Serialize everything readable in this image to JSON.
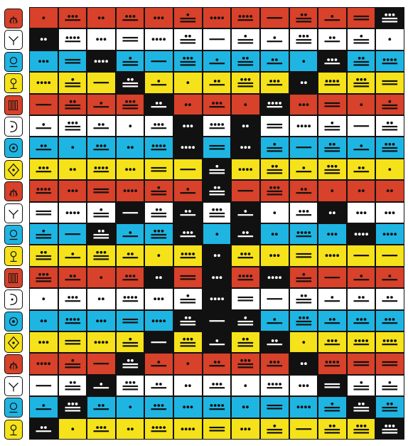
{
  "palette": {
    "red": "#d8412a",
    "white": "#ffffff",
    "blue": "#1fb5e2",
    "yellow": "#f5e21a",
    "black": "#111111"
  },
  "day_signs": [
    {
      "name": "imix-glyph-icon",
      "color": "red"
    },
    {
      "name": "ik-glyph-icon",
      "color": "white"
    },
    {
      "name": "akbal-glyph-icon",
      "color": "blue"
    },
    {
      "name": "kan-glyph-icon",
      "color": "yellow"
    },
    {
      "name": "chikchan-glyph-icon",
      "color": "red"
    },
    {
      "name": "kimi-glyph-icon",
      "color": "white"
    },
    {
      "name": "manik-glyph-icon",
      "color": "blue"
    },
    {
      "name": "lamat-glyph-icon",
      "color": "yellow"
    },
    {
      "name": "muluk-glyph-icon",
      "color": "red"
    },
    {
      "name": "ok-glyph-icon",
      "color": "white"
    },
    {
      "name": "chuwen-glyph-icon",
      "color": "blue"
    },
    {
      "name": "eb-glyph-icon",
      "color": "yellow"
    },
    {
      "name": "ben-glyph-icon",
      "color": "red"
    },
    {
      "name": "ix-glyph-icon",
      "color": "white"
    },
    {
      "name": "men-glyph-icon",
      "color": "blue"
    },
    {
      "name": "kib-glyph-icon",
      "color": "yellow"
    },
    {
      "name": "kaban-glyph-icon",
      "color": "red"
    },
    {
      "name": "etznab-glyph-icon",
      "color": "white"
    },
    {
      "name": "kawak-glyph-icon",
      "color": "blue"
    },
    {
      "name": "ajaw-glyph-icon",
      "color": "yellow"
    }
  ],
  "row_colors": [
    "red",
    "white",
    "blue",
    "yellow",
    "red",
    "white",
    "blue",
    "yellow",
    "red",
    "white",
    "blue",
    "yellow",
    "red",
    "white",
    "blue",
    "yellow",
    "red",
    "white",
    "blue",
    "yellow"
  ],
  "black_cells": [
    [
      0,
      12
    ],
    [
      1,
      0
    ],
    [
      2,
      2
    ],
    [
      2,
      10
    ],
    [
      3,
      3
    ],
    [
      3,
      9
    ],
    [
      4,
      4
    ],
    [
      4,
      8
    ],
    [
      5,
      5
    ],
    [
      5,
      7
    ],
    [
      6,
      5
    ],
    [
      6,
      7
    ],
    [
      7,
      6
    ],
    [
      8,
      6
    ],
    [
      9,
      3
    ],
    [
      9,
      5
    ],
    [
      9,
      7
    ],
    [
      9,
      10
    ],
    [
      10,
      2
    ],
    [
      10,
      5
    ],
    [
      10,
      7
    ],
    [
      10,
      11
    ],
    [
      11,
      6
    ],
    [
      12,
      4
    ],
    [
      12,
      6
    ],
    [
      12,
      8
    ],
    [
      13,
      6
    ],
    [
      14,
      5
    ],
    [
      14,
      6
    ],
    [
      14,
      7
    ],
    [
      15,
      4
    ],
    [
      15,
      6
    ],
    [
      15,
      8
    ],
    [
      16,
      3
    ],
    [
      16,
      9
    ],
    [
      17,
      2
    ],
    [
      17,
      10
    ],
    [
      18,
      1
    ],
    [
      18,
      11
    ],
    [
      19,
      0
    ],
    [
      19,
      12
    ]
  ],
  "numbers": [
    [
      1,
      8,
      2,
      8,
      3,
      11,
      4,
      9,
      5,
      12,
      6,
      10,
      13
    ],
    [
      2,
      9,
      3,
      10,
      4,
      12,
      5,
      11,
      6,
      13,
      7,
      11,
      1
    ],
    [
      3,
      10,
      4,
      11,
      5,
      13,
      6,
      12,
      7,
      1,
      8,
      12,
      9
    ],
    [
      4,
      11,
      5,
      12,
      6,
      1,
      7,
      13,
      8,
      2,
      9,
      13,
      10
    ],
    [
      5,
      12,
      6,
      13,
      7,
      2,
      8,
      1,
      9,
      3,
      10,
      1,
      11
    ],
    [
      6,
      13,
      7,
      1,
      8,
      3,
      9,
      2,
      10,
      4,
      11,
      5,
      12
    ],
    [
      7,
      1,
      8,
      2,
      9,
      4,
      10,
      3,
      11,
      5,
      12,
      6,
      13
    ],
    [
      8,
      2,
      9,
      3,
      10,
      5,
      11,
      4,
      12,
      6,
      13,
      7,
      1
    ],
    [
      9,
      3,
      10,
      4,
      11,
      6,
      12,
      5,
      13,
      7,
      1,
      2,
      2
    ],
    [
      10,
      4,
      11,
      5,
      12,
      7,
      13,
      6,
      1,
      8,
      2,
      3,
      3
    ],
    [
      11,
      5,
      12,
      6,
      13,
      8,
      1,
      7,
      2,
      9,
      3,
      4,
      4
    ],
    [
      12,
      6,
      13,
      7,
      1,
      9,
      2,
      8,
      3,
      10,
      4,
      5,
      5
    ],
    [
      13,
      7,
      1,
      8,
      2,
      10,
      3,
      9,
      4,
      11,
      5,
      6,
      6
    ],
    [
      1,
      8,
      2,
      9,
      3,
      11,
      4,
      10,
      5,
      12,
      6,
      7,
      7
    ],
    [
      2,
      9,
      3,
      10,
      4,
      12,
      5,
      11,
      6,
      13,
      7,
      8,
      8
    ],
    [
      3,
      10,
      4,
      11,
      5,
      13,
      6,
      12,
      7,
      1,
      8,
      9,
      9
    ],
    [
      4,
      11,
      5,
      12,
      6,
      1,
      7,
      13,
      8,
      2,
      9,
      10,
      10
    ],
    [
      5,
      12,
      6,
      13,
      7,
      2,
      8,
      1,
      9,
      3,
      10,
      11,
      11
    ],
    [
      6,
      13,
      7,
      1,
      8,
      3,
      9,
      2,
      10,
      4,
      11,
      12,
      12
    ],
    [
      7,
      1,
      8,
      2,
      9,
      4,
      10,
      3,
      11,
      5,
      12,
      13,
      13
    ]
  ]
}
